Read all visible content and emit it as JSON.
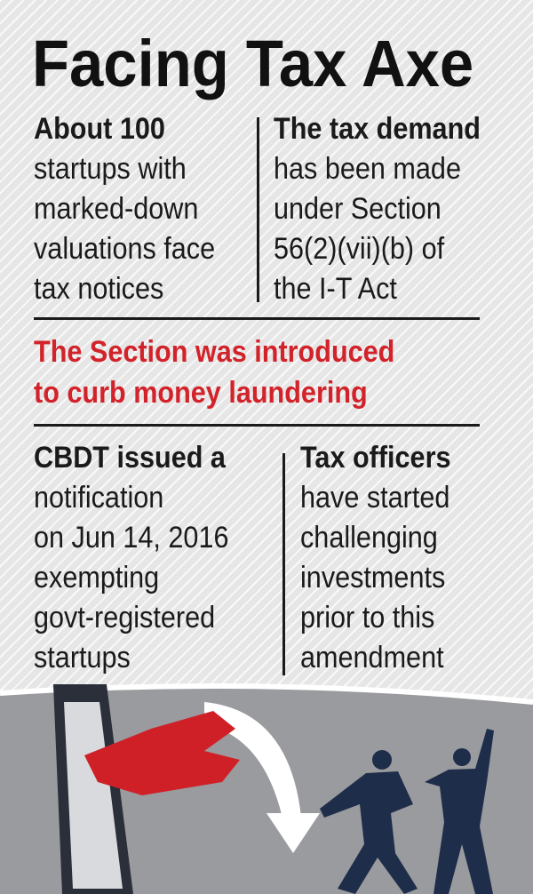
{
  "title": "Facing Tax Axe",
  "blocks": [
    {
      "lead": "About 100",
      "lines": [
        "startups with",
        "marked-down",
        "valuations face",
        "tax notices"
      ]
    },
    {
      "lead": "The tax demand",
      "lines": [
        "has been made",
        "under Section",
        "56(2)(vii)(b) of",
        "the I-T Act"
      ]
    },
    {
      "lead": "CBDT issued a",
      "lines": [
        "notification",
        "on Jun 14, 2016",
        "exempting",
        "govt-registered",
        "startups"
      ]
    },
    {
      "lead": "Tax officers",
      "lines": [
        "have started",
        "challenging",
        "investments",
        "prior to this",
        "amendment"
      ]
    }
  ],
  "highlight": [
    "The Section was introduced",
    "to curb money laundering"
  ]
}
